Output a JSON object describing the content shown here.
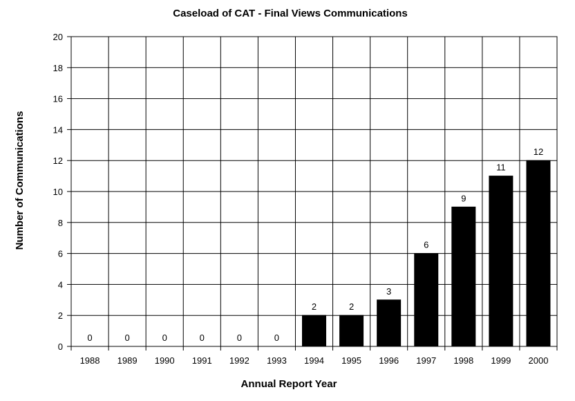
{
  "chart_data": {
    "type": "bar",
    "title": "Caseload of CAT - Final Views Communications",
    "xlabel": "Annual Report Year",
    "ylabel": "Number of Communications",
    "categories": [
      "1988",
      "1989",
      "1990",
      "1991",
      "1992",
      "1993",
      "1994",
      "1995",
      "1996",
      "1997",
      "1998",
      "1999",
      "2000"
    ],
    "values": [
      0,
      0,
      0,
      0,
      0,
      0,
      2,
      2,
      3,
      6,
      9,
      11,
      12
    ],
    "ylim": [
      0,
      20
    ],
    "yticks": [
      0,
      2,
      4,
      6,
      8,
      10,
      12,
      14,
      16,
      18,
      20
    ],
    "grid": true,
    "bar_color": "#000000",
    "data_labels": true
  }
}
